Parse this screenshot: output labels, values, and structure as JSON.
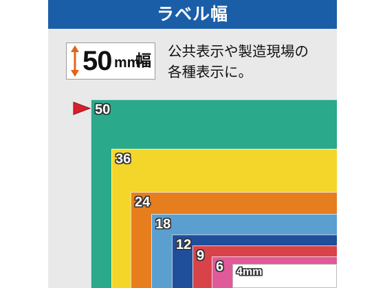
{
  "header": {
    "title": "ラベル幅"
  },
  "badge": {
    "number": "50",
    "unit": "mm",
    "kanji": "幅",
    "arrow_color": "#e0651a"
  },
  "description": {
    "lines": [
      "公共表示や製造現場の",
      "各種表示に。"
    ]
  },
  "pointer": {
    "color": "#d8202a",
    "icon": "triangle-pointer-icon"
  },
  "labels": [
    {
      "width": "50",
      "color": "#2aa98b"
    },
    {
      "width": "36",
      "color": "#f4d62a"
    },
    {
      "width": "24",
      "color": "#e67e1e"
    },
    {
      "width": "18",
      "color": "#5b9fd1"
    },
    {
      "width": "12",
      "color": "#1f4f9b"
    },
    {
      "width": "9",
      "color": "#d8434a"
    },
    {
      "width": "6",
      "color": "#e05a9a"
    },
    {
      "width": "4mm",
      "color": "#ffffff"
    }
  ]
}
